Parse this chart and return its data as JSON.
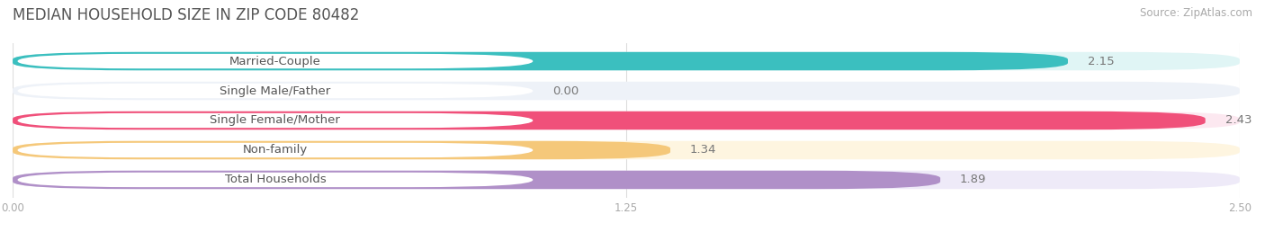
{
  "title": "MEDIAN HOUSEHOLD SIZE IN ZIP CODE 80482",
  "source": "Source: ZipAtlas.com",
  "categories": [
    "Married-Couple",
    "Single Male/Father",
    "Single Female/Mother",
    "Non-family",
    "Total Households"
  ],
  "values": [
    2.15,
    0.0,
    2.43,
    1.34,
    1.89
  ],
  "bar_colors": [
    "#3bbfbf",
    "#a8bfe0",
    "#f0507a",
    "#f5c87a",
    "#b090c8"
  ],
  "bar_bg_colors": [
    "#e0f5f5",
    "#eef2f8",
    "#fce8f0",
    "#fef5e0",
    "#eeeaf8"
  ],
  "xlim": [
    0,
    2.5
  ],
  "xticks": [
    0.0,
    1.25,
    2.5
  ],
  "xtick_labels": [
    "0.00",
    "1.25",
    "2.50"
  ],
  "title_fontsize": 12,
  "label_fontsize": 9.5,
  "value_fontsize": 9.5,
  "source_fontsize": 8.5,
  "background_color": "#ffffff",
  "label_text_color": "#555555"
}
